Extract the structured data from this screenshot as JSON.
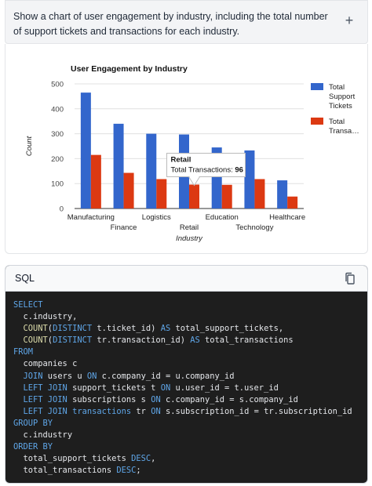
{
  "prompt": {
    "text": "Show a chart of user engagement by industry, including the total number of support tickets and transactions for each industry."
  },
  "chart_data": {
    "type": "bar",
    "title": "User Engagement by Industry",
    "xlabel": "Industry",
    "ylabel": "Count",
    "ylim": [
      0,
      500
    ],
    "yticks": [
      0,
      100,
      200,
      300,
      400,
      500
    ],
    "categories": [
      "Manufacturing",
      "Finance",
      "Logistics",
      "Retail",
      "Education",
      "Technology",
      "Healthcare"
    ],
    "series": [
      {
        "name": "Total Support Tickets",
        "legend_lines": [
          "Total",
          "Support",
          "Tickets"
        ],
        "color": "#3366cc",
        "values": [
          465,
          340,
          300,
          297,
          245,
          233,
          113
        ]
      },
      {
        "name": "Total Transactions",
        "legend_lines": [
          "Total",
          "Transa…"
        ],
        "color": "#dc3912",
        "values": [
          215,
          143,
          118,
          96,
          95,
          118,
          48
        ]
      }
    ],
    "legend_position": "right",
    "tooltip": {
      "category": "Retail",
      "label": "Total Transactions:",
      "value": "96"
    }
  },
  "sql": {
    "title": "SQL",
    "copy_icon": "copy-icon"
  }
}
